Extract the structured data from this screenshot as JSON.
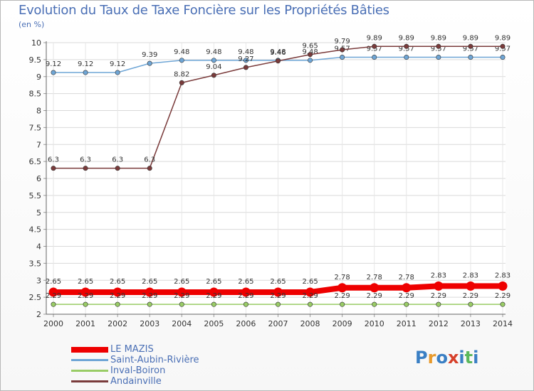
{
  "title": "Evolution du Taux de Taxe Foncière sur les Propriétés Bâties",
  "subtitle": "(en %)",
  "logo": {
    "text": "Proxiti",
    "colors": [
      "#3a7fc4",
      "#e89a2c",
      "#3a7fc4",
      "#d6402a",
      "#3a7fc4",
      "#5cb85c",
      "#3a7fc4"
    ]
  },
  "chart_data": {
    "type": "line",
    "title": "Evolution du Taux de Taxe Foncière sur les Propriétés Bâties",
    "ylabel": "(en %)",
    "xlabel": "",
    "categories": [
      "2000",
      "2001",
      "2002",
      "2003",
      "2004",
      "2005",
      "2006",
      "2007",
      "2008",
      "2009",
      "2010",
      "2011",
      "2012",
      "2013",
      "2014"
    ],
    "ylim": [
      2,
      10
    ],
    "yticks": [
      "2",
      "2.5",
      "3",
      "3.5",
      "4",
      "4.5",
      "5",
      "5.5",
      "6",
      "6.5",
      "7",
      "7.5",
      "8",
      "8.5",
      "9",
      "9.5",
      "10"
    ],
    "series": [
      {
        "name": "LE MAZIS",
        "color": "#ee0000",
        "thick": true,
        "values": [
          2.65,
          2.65,
          2.65,
          2.65,
          2.65,
          2.65,
          2.65,
          2.65,
          2.65,
          2.78,
          2.78,
          2.78,
          2.83,
          2.83,
          2.83
        ],
        "labels": [
          "2.65",
          "2.65",
          "2.65",
          "2.65",
          "2.65",
          "2.65",
          "2.65",
          "2.65",
          "2.65",
          "2.78",
          "2.78",
          "2.78",
          "2.83",
          "2.83",
          "2.83"
        ]
      },
      {
        "name": "Saint-Aubin-Rivière",
        "color": "#6fa6d6",
        "thick": false,
        "values": [
          9.12,
          9.12,
          9.12,
          9.39,
          9.48,
          9.48,
          9.48,
          9.48,
          9.48,
          9.57,
          9.57,
          9.57,
          9.57,
          9.57,
          9.57
        ],
        "labels": [
          "9.12",
          "9.12",
          "9.12",
          "9.39",
          "9.48",
          "9.48",
          "9.48",
          "9.48",
          "9.48",
          "9.57",
          "9.57",
          "9.57",
          "9.57",
          "9.57",
          "9.57"
        ]
      },
      {
        "name": "Inval-Boiron",
        "color": "#99cc66",
        "thick": false,
        "values": [
          2.29,
          2.29,
          2.29,
          2.29,
          2.29,
          2.29,
          2.29,
          2.29,
          2.29,
          2.29,
          2.29,
          2.29,
          2.29,
          2.29,
          2.29
        ],
        "labels": [
          "2.29",
          "2.29",
          "2.29",
          "2.29",
          "2.29",
          "2.29",
          "2.29",
          "2.29",
          "2.29",
          "2.29",
          "2.29",
          "2.29",
          "2.29",
          "2.29",
          "2.29"
        ]
      },
      {
        "name": "Andainville",
        "color": "#7a3b3b",
        "thick": false,
        "values": [
          6.3,
          6.3,
          6.3,
          6.3,
          8.82,
          9.04,
          9.27,
          9.46,
          9.65,
          9.79,
          9.89,
          9.89,
          9.89,
          9.89,
          9.89
        ],
        "labels": [
          "6.3",
          "6.3",
          "6.3",
          "6.3",
          "8.82",
          "9.04",
          "9.27",
          "9.46",
          "9.65",
          "9.79",
          "9.89",
          "9.89",
          "9.89",
          "9.89",
          "9.89"
        ]
      }
    ]
  }
}
